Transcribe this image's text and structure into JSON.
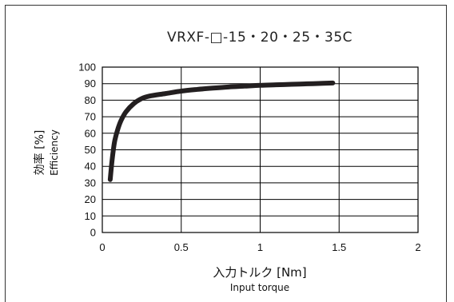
{
  "chart_data": {
    "type": "line",
    "title": "VRXF-□-15・20・25・35C",
    "xlabel": "入力トルク [Nm]",
    "xlabel_sub": "Input torque",
    "ylabel": "効率 [%]",
    "ylabel_sub": "Efficiency",
    "xlim": [
      0,
      2
    ],
    "ylim": [
      0,
      100
    ],
    "x_ticks": [
      "0",
      "0.5",
      "1",
      "1.5",
      "2"
    ],
    "y_ticks": [
      "0",
      "10",
      "20",
      "30",
      "40",
      "50",
      "60",
      "70",
      "80",
      "90",
      "100"
    ],
    "grid": true,
    "series": [
      {
        "color": "#231f20",
        "x": [
          0.05,
          0.06,
          0.07,
          0.08,
          0.1,
          0.12,
          0.15,
          0.2,
          0.25,
          0.3,
          0.4,
          0.5,
          0.6,
          0.7,
          0.8,
          0.9,
          1.0,
          1.1,
          1.2,
          1.3,
          1.4,
          1.46
        ],
        "y": [
          32,
          42,
          50,
          56,
          63,
          68,
          73,
          78,
          81,
          82.5,
          84,
          85.5,
          86.5,
          87.3,
          88,
          88.5,
          89,
          89.3,
          89.6,
          89.9,
          90.2,
          90.4
        ]
      }
    ]
  }
}
